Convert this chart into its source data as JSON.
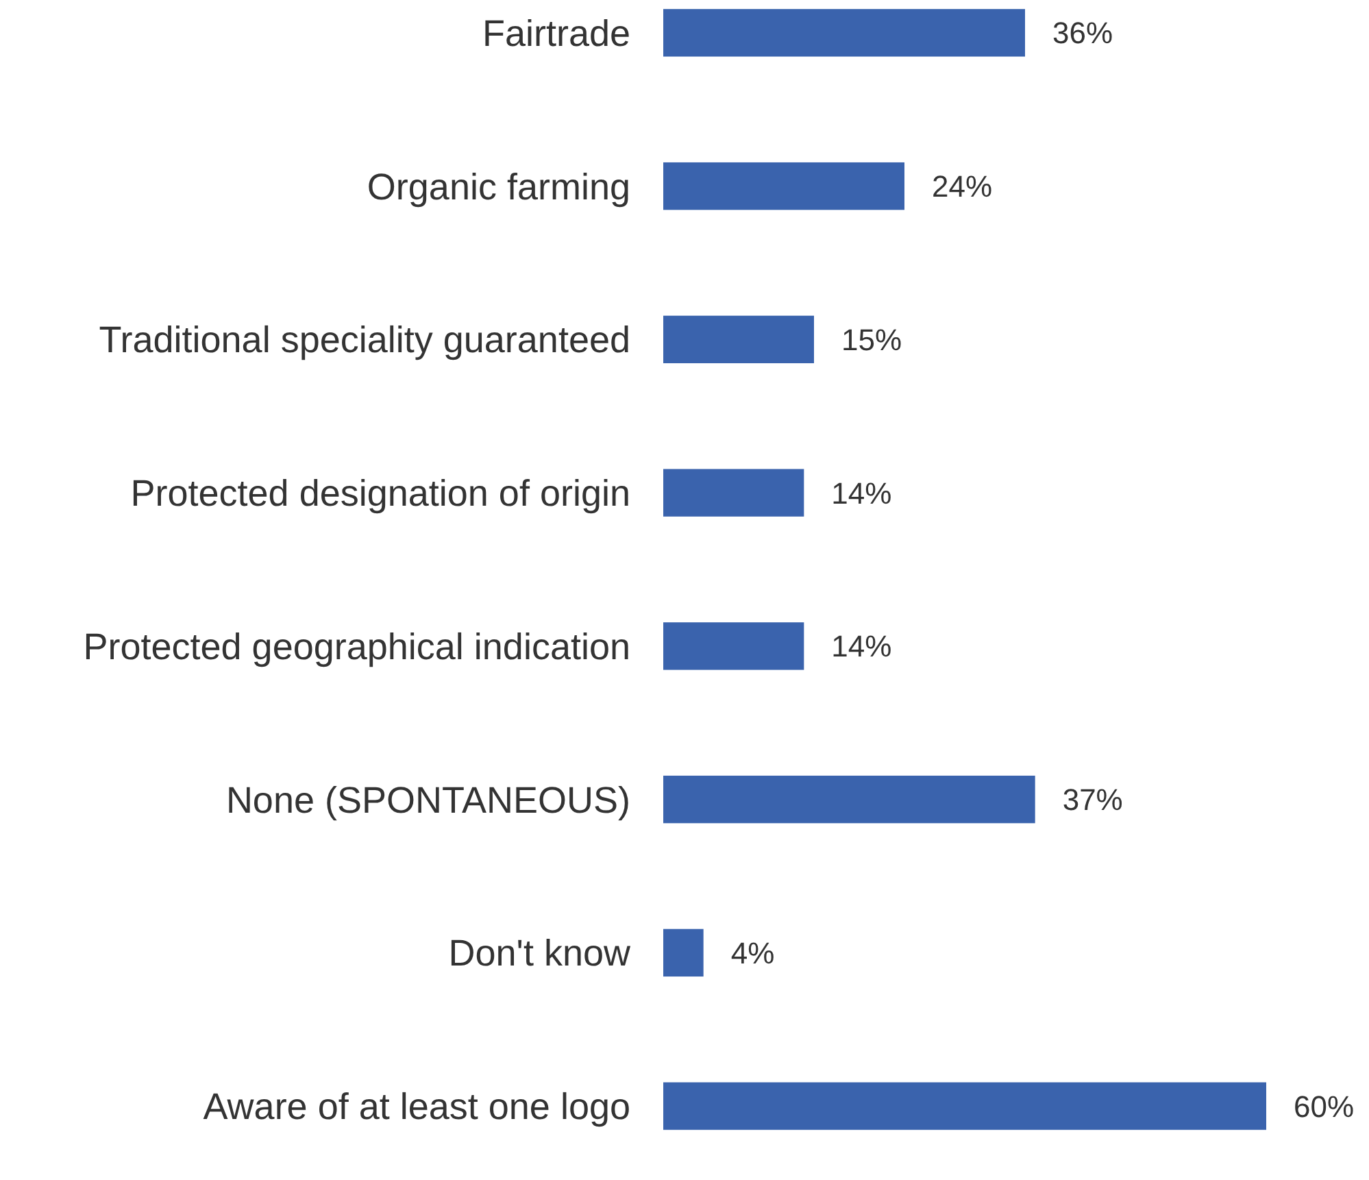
{
  "chart_data": {
    "type": "bar",
    "orientation": "horizontal",
    "categories": [
      "Fairtrade",
      "Organic farming",
      "Traditional speciality guaranteed",
      "Protected designation of origin",
      "Protected geographical indication",
      "None (SPONTANEOUS)",
      "Don't know",
      "Aware of at least one logo"
    ],
    "values": [
      36,
      24,
      15,
      14,
      14,
      37,
      4,
      60
    ],
    "value_labels": [
      "36%",
      "24%",
      "15%",
      "14%",
      "14%",
      "37%",
      "4%",
      "60%"
    ],
    "color": "#3a63ad"
  }
}
